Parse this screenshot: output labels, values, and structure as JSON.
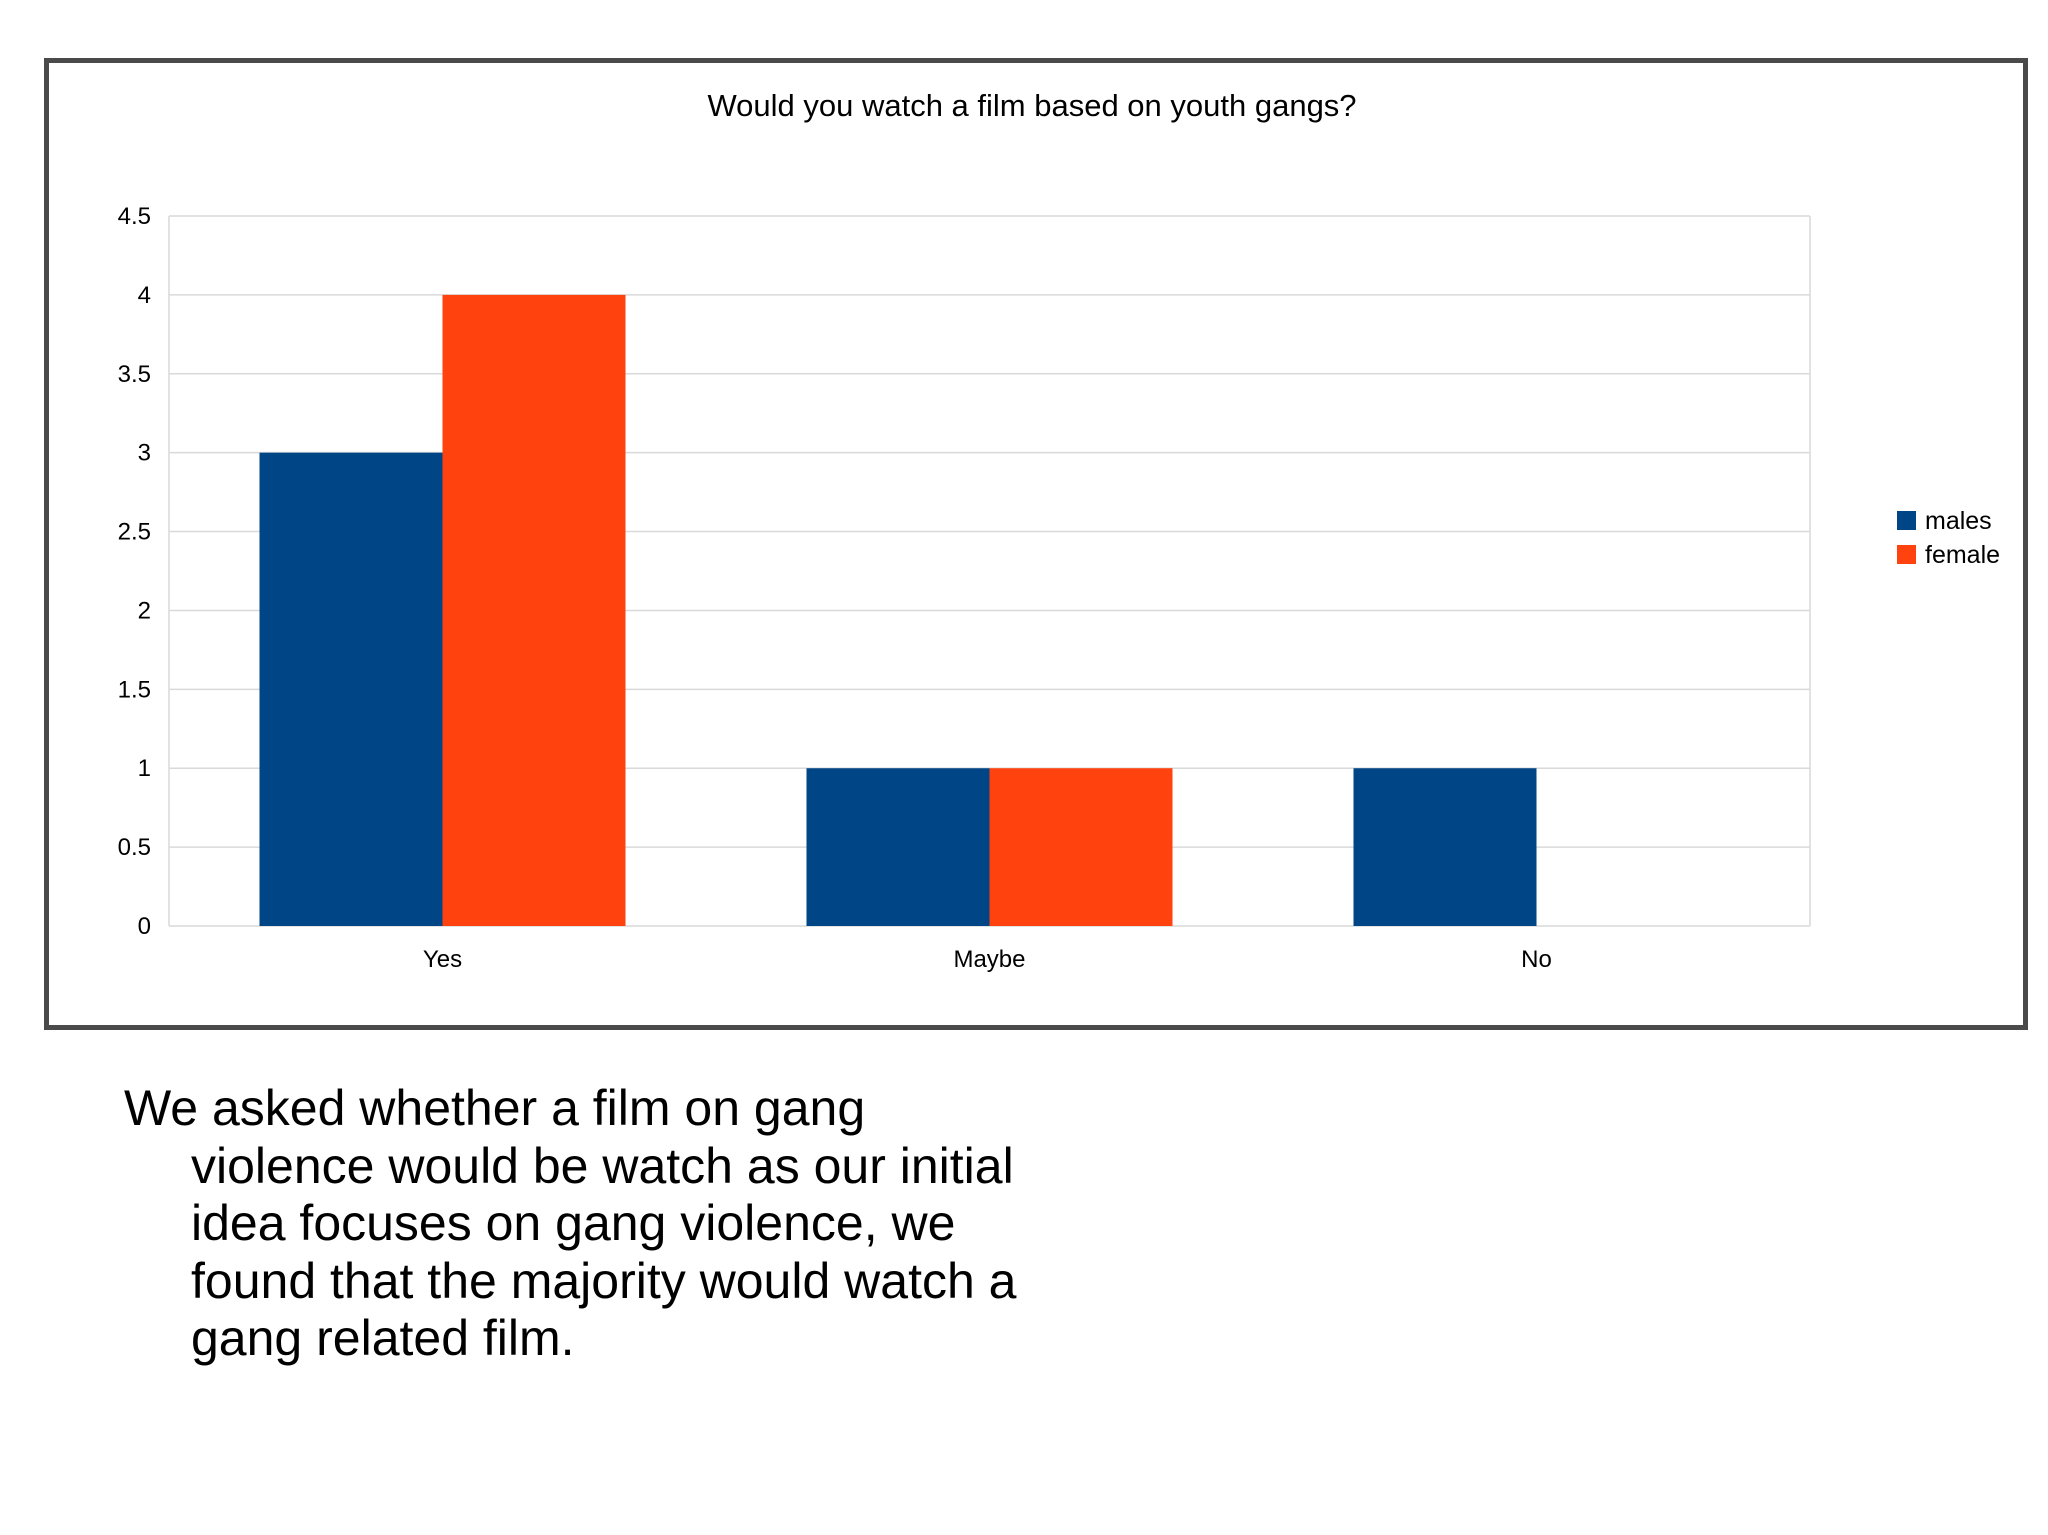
{
  "chart_data": {
    "type": "bar",
    "title": "Would you watch a film based on youth gangs?",
    "categories": [
      "Yes",
      "Maybe",
      "No"
    ],
    "series": [
      {
        "name": "males",
        "values": [
          3,
          1,
          1
        ],
        "color": "#004586"
      },
      {
        "name": "female",
        "values": [
          4,
          1,
          0
        ],
        "color": "#ff420e"
      }
    ],
    "ylim": [
      0,
      4.5
    ],
    "yticks": [
      "0",
      "0.5",
      "1",
      "1.5",
      "2",
      "2.5",
      "3",
      "3.5",
      "4",
      "4.5"
    ],
    "grid": true,
    "legend_position": "right"
  },
  "caption": "We asked whether a film on gang violence would be watch as our initial idea focuses on gang violence, we found that the majority would watch a gang related film."
}
